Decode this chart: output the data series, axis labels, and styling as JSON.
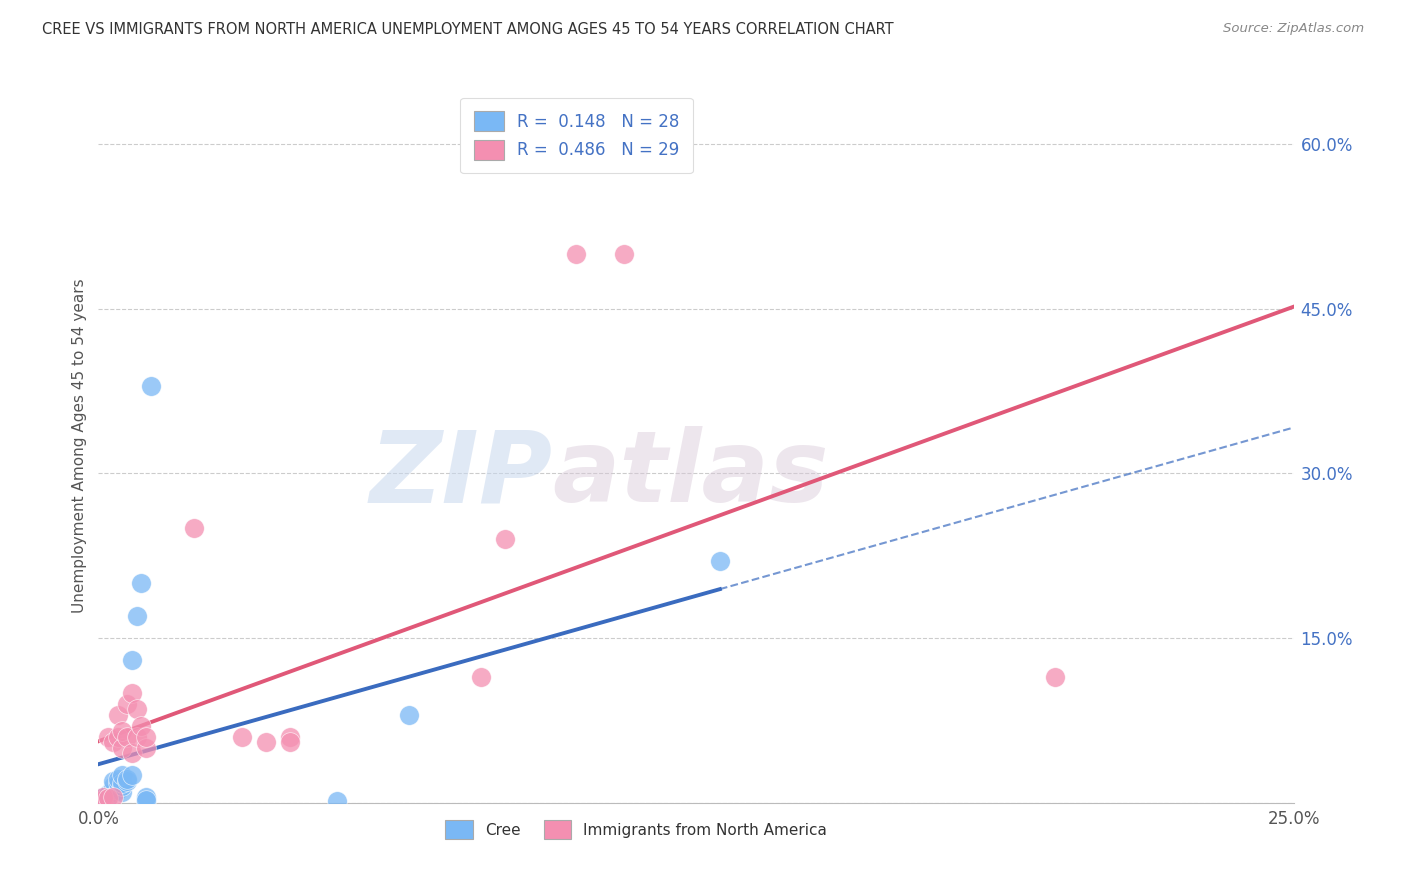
{
  "title": "CREE VS IMMIGRANTS FROM NORTH AMERICA UNEMPLOYMENT AMONG AGES 45 TO 54 YEARS CORRELATION CHART",
  "source": "Source: ZipAtlas.com",
  "ylabel": "Unemployment Among Ages 45 to 54 years",
  "xlim": [
    0.0,
    0.25
  ],
  "ylim": [
    0.0,
    0.65
  ],
  "x_ticks": [
    0.0,
    0.05,
    0.1,
    0.15,
    0.2,
    0.25
  ],
  "x_tick_labels": [
    "0.0%",
    "",
    "",
    "",
    "",
    "25.0%"
  ],
  "y_ticks_right": [
    0.0,
    0.15,
    0.3,
    0.45,
    0.6
  ],
  "y_tick_labels_right": [
    "",
    "15.0%",
    "30.0%",
    "45.0%",
    "60.0%"
  ],
  "watermark_zip": "ZIP",
  "watermark_atlas": "atlas",
  "cree_color": "#7ab8f5",
  "immigrants_color": "#f48fb1",
  "cree_line_color": "#3a6bbf",
  "immigrants_line_color": "#e05878",
  "cree_scatter": [
    [
      0.001,
      0.003
    ],
    [
      0.001,
      0.005
    ],
    [
      0.002,
      0.003
    ],
    [
      0.002,
      0.005
    ],
    [
      0.002,
      0.008
    ],
    [
      0.003,
      0.01
    ],
    [
      0.003,
      0.015
    ],
    [
      0.003,
      0.02
    ],
    [
      0.004,
      0.012
    ],
    [
      0.004,
      0.018
    ],
    [
      0.004,
      0.022
    ],
    [
      0.005,
      0.01
    ],
    [
      0.005,
      0.015
    ],
    [
      0.005,
      0.018
    ],
    [
      0.005,
      0.025
    ],
    [
      0.006,
      0.02
    ],
    [
      0.006,
      0.022
    ],
    [
      0.007,
      0.025
    ],
    [
      0.007,
      0.13
    ],
    [
      0.008,
      0.17
    ],
    [
      0.009,
      0.2
    ],
    [
      0.01,
      0.002
    ],
    [
      0.01,
      0.005
    ],
    [
      0.01,
      0.003
    ],
    [
      0.011,
      0.38
    ],
    [
      0.05,
      0.002
    ],
    [
      0.065,
      0.08
    ],
    [
      0.13,
      0.22
    ]
  ],
  "immigrants_scatter": [
    [
      0.001,
      0.003
    ],
    [
      0.001,
      0.005
    ],
    [
      0.002,
      0.004
    ],
    [
      0.002,
      0.06
    ],
    [
      0.003,
      0.005
    ],
    [
      0.003,
      0.055
    ],
    [
      0.004,
      0.06
    ],
    [
      0.004,
      0.08
    ],
    [
      0.005,
      0.05
    ],
    [
      0.005,
      0.065
    ],
    [
      0.006,
      0.06
    ],
    [
      0.006,
      0.09
    ],
    [
      0.007,
      0.045
    ],
    [
      0.007,
      0.1
    ],
    [
      0.008,
      0.06
    ],
    [
      0.008,
      0.085
    ],
    [
      0.009,
      0.07
    ],
    [
      0.01,
      0.05
    ],
    [
      0.01,
      0.06
    ],
    [
      0.02,
      0.25
    ],
    [
      0.03,
      0.06
    ],
    [
      0.035,
      0.055
    ],
    [
      0.04,
      0.06
    ],
    [
      0.04,
      0.055
    ],
    [
      0.08,
      0.115
    ],
    [
      0.085,
      0.24
    ],
    [
      0.1,
      0.5
    ],
    [
      0.11,
      0.5
    ],
    [
      0.2,
      0.115
    ]
  ],
  "cree_R": 0.148,
  "cree_N": 28,
  "immigrants_R": 0.486,
  "immigrants_N": 29,
  "figsize": [
    14.06,
    8.92
  ],
  "dpi": 100
}
